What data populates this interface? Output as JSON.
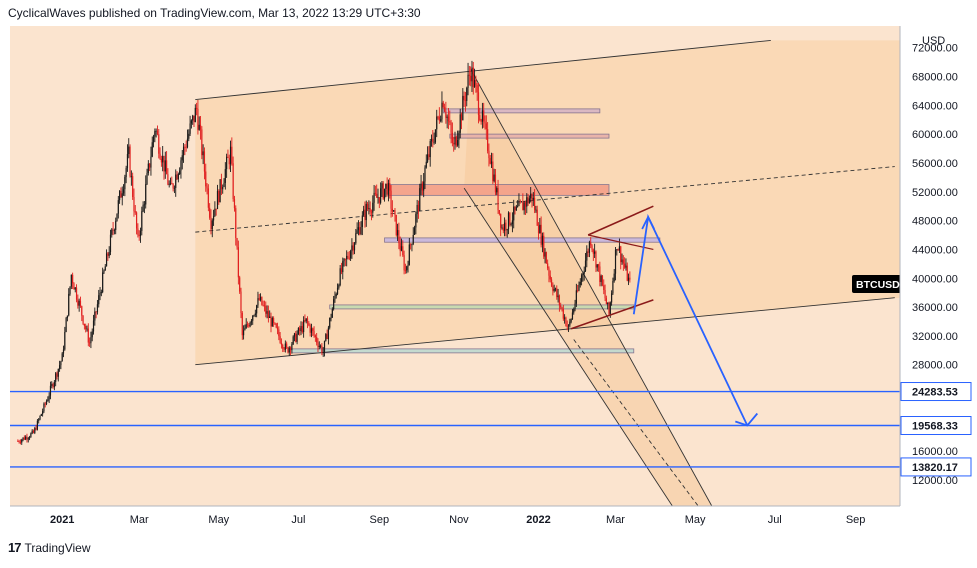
{
  "header": {
    "publisher_line": "CyclicalWaves published on TradingView.com, Mar 13, 2022 13:29 UTC+3:30"
  },
  "footer": {
    "brand": "TradingView"
  },
  "chart_data": {
    "type": "candlestick",
    "symbol": "BTCUSD",
    "currency": "USD",
    "y_axis_ticks": [
      72000,
      68000,
      64000,
      60000,
      56000,
      52000,
      48000,
      44000,
      40000,
      36000,
      32000,
      28000,
      16000,
      12000
    ],
    "y_tick_labels": [
      "72000.00",
      "68000.00",
      "64000.00",
      "60000.00",
      "56000.00",
      "52000.00",
      "48000.00",
      "44000.00",
      "40000.00",
      "36000.00",
      "32000.00",
      "28000.00",
      "16000.00",
      "12000.00"
    ],
    "x_tick_labels": [
      {
        "label": "2021",
        "bold": true
      },
      {
        "label": "Mar"
      },
      {
        "label": "May"
      },
      {
        "label": "Jul"
      },
      {
        "label": "Sep"
      },
      {
        "label": "Nov"
      },
      {
        "label": "2022",
        "bold": true
      },
      {
        "label": "Mar"
      },
      {
        "label": "May"
      },
      {
        "label": "Jul"
      },
      {
        "label": "Sep"
      }
    ],
    "horizontal_levels": [
      {
        "label": "24283.53",
        "value": 24283.53,
        "color": "#2962ff"
      },
      {
        "label": "19568.33",
        "value": 19568.33,
        "color": "#2962ff"
      },
      {
        "label": "13820.17",
        "value": 13820.17,
        "color": "#2962ff"
      }
    ],
    "last_price_label": "BTCUSD",
    "ohlc_anchor_points": [
      [
        "2020-11-28",
        17400
      ],
      [
        "2020-12-10",
        18500
      ],
      [
        "2020-12-20",
        23000
      ],
      [
        "2021-01-01",
        29000
      ],
      [
        "2021-01-08",
        40500
      ],
      [
        "2021-01-22",
        31000
      ],
      [
        "2021-02-08",
        46000
      ],
      [
        "2021-02-21",
        57000
      ],
      [
        "2021-02-28",
        45000
      ],
      [
        "2021-03-13",
        61000
      ],
      [
        "2021-03-25",
        52000
      ],
      [
        "2021-04-14",
        63500
      ],
      [
        "2021-04-25",
        48000
      ],
      [
        "2021-05-10",
        57500
      ],
      [
        "2021-05-19",
        32000
      ],
      [
        "2021-06-01",
        37000
      ],
      [
        "2021-06-22",
        30000
      ],
      [
        "2021-07-07",
        34000
      ],
      [
        "2021-07-20",
        29800
      ],
      [
        "2021-08-01",
        40000
      ],
      [
        "2021-08-22",
        49500
      ],
      [
        "2021-09-07",
        52800
      ],
      [
        "2021-09-21",
        41000
      ],
      [
        "2021-10-06",
        55000
      ],
      [
        "2021-10-20",
        65000
      ],
      [
        "2021-10-28",
        58000
      ],
      [
        "2021-11-10",
        69000
      ],
      [
        "2021-11-25",
        57000
      ],
      [
        "2021-12-04",
        47000
      ],
      [
        "2021-12-27",
        51500
      ],
      [
        "2022-01-10",
        40000
      ],
      [
        "2022-01-24",
        33000
      ],
      [
        "2022-02-10",
        45500
      ],
      [
        "2022-02-24",
        35000
      ],
      [
        "2022-03-02",
        45000
      ],
      [
        "2022-03-13",
        38500
      ]
    ],
    "annotations": {
      "projection_path": [
        [
          "2022-03-15",
          35000
        ],
        [
          "2022-03-26",
          48500
        ],
        [
          "2022-06-10",
          19568.33
        ]
      ],
      "channel_upper": [
        [
          "2021-04-13",
          64800
        ],
        [
          "2022-06-28",
          73000
        ]
      ],
      "channel_lower": [
        [
          "2021-04-13",
          28000
        ],
        [
          "2022-10-01",
          37300
        ]
      ],
      "channel_mid": [
        [
          "2021-04-13",
          46400
        ],
        [
          "2022-10-01",
          55500
        ]
      ],
      "descending_channel_outer_a": [
        [
          "2021-11-10",
          69000
        ],
        [
          "2022-05-15",
          8000
        ]
      ],
      "descending_channel_outer_b": [
        [
          "2021-11-05",
          52500
        ],
        [
          "2022-04-15",
          8000
        ]
      ],
      "triangle_upper": [
        [
          "2022-02-08",
          46000
        ],
        [
          "2022-03-30",
          50000
        ]
      ],
      "triangle_lower": [
        [
          "2022-01-26",
          33000
        ],
        [
          "2022-03-30",
          37000
        ]
      ],
      "zones": [
        {
          "from": [
            "2021-10-20",
            63500
          ],
          "to": [
            "2022-02-17",
            63200
          ],
          "fill": "#d7b5c4"
        },
        {
          "from": [
            "2021-10-25",
            60000
          ],
          "to": [
            "2022-02-24",
            59500
          ],
          "fill": "#e8b0a9"
        },
        {
          "from": [
            "2021-09-08",
            53000
          ],
          "to": [
            "2022-02-24",
            51500
          ],
          "fill": "#f4a089"
        },
        {
          "from": [
            "2021-09-05",
            45600
          ],
          "to": [
            "2022-04-04",
            45000
          ],
          "fill": "#c6b6e0"
        },
        {
          "from": [
            "2021-07-25",
            36300
          ],
          "to": [
            "2022-03-15",
            35800
          ],
          "fill": "#c4dbb0"
        },
        {
          "from": [
            "2021-06-26",
            30200
          ],
          "to": [
            "2022-03-15",
            29800
          ],
          "fill": "#bfdad0"
        }
      ]
    }
  }
}
